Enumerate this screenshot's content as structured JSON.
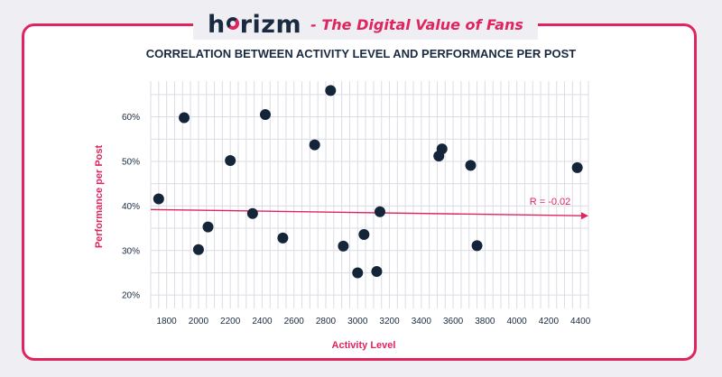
{
  "header": {
    "logo_prefix": "h",
    "logo_suffix": "rizm",
    "tagline": "- The Digital Value of Fans"
  },
  "colors": {
    "accent": "#e0255e",
    "point": "#14253a",
    "grid": "#dcdce6",
    "text": "#1a2a40"
  },
  "chart_data": {
    "type": "scatter",
    "title": "CORRELATION BETWEEN ACTIVITY LEVEL AND PERFORMANCE PER POST",
    "xlabel": "Activity Level",
    "ylabel": "Performance per Post",
    "xlim": [
      1700,
      4450
    ],
    "ylim": [
      17,
      68
    ],
    "grid": true,
    "x_ticks": [
      1800,
      2000,
      2200,
      2400,
      2600,
      2800,
      3000,
      3200,
      3400,
      3600,
      3800,
      4000,
      4200,
      4400
    ],
    "x_tick_labels": [
      "1800",
      "2000",
      "2200",
      "2400",
      "2600",
      "2800",
      "3000",
      "3200",
      "3400",
      "3600",
      "3800",
      "4000",
      "4200",
      "4400"
    ],
    "y_ticks": [
      20,
      30,
      40,
      50,
      60
    ],
    "y_tick_labels": [
      "20%",
      "30%",
      "40%",
      "50%",
      "60%"
    ],
    "points": [
      {
        "x": 1750,
        "y": 41.6
      },
      {
        "x": 1910,
        "y": 59.8
      },
      {
        "x": 2000,
        "y": 30.2
      },
      {
        "x": 2060,
        "y": 35.3
      },
      {
        "x": 2200,
        "y": 50.2
      },
      {
        "x": 2340,
        "y": 38.3
      },
      {
        "x": 2420,
        "y": 60.5
      },
      {
        "x": 2530,
        "y": 32.8
      },
      {
        "x": 2730,
        "y": 53.7
      },
      {
        "x": 2830,
        "y": 65.9
      },
      {
        "x": 2910,
        "y": 31.0
      },
      {
        "x": 3000,
        "y": 25.0
      },
      {
        "x": 3040,
        "y": 33.6
      },
      {
        "x": 3120,
        "y": 25.3
      },
      {
        "x": 3140,
        "y": 38.7
      },
      {
        "x": 3510,
        "y": 51.2
      },
      {
        "x": 3530,
        "y": 52.8
      },
      {
        "x": 3710,
        "y": 49.1
      },
      {
        "x": 3750,
        "y": 31.1
      },
      {
        "x": 4380,
        "y": 48.6
      }
    ],
    "trendline": {
      "x": [
        1700,
        4450
      ],
      "y": [
        39.2,
        37.8
      ]
    },
    "annotation": {
      "text": "R = -0.02",
      "x": 4080,
      "y": 40.3
    }
  }
}
